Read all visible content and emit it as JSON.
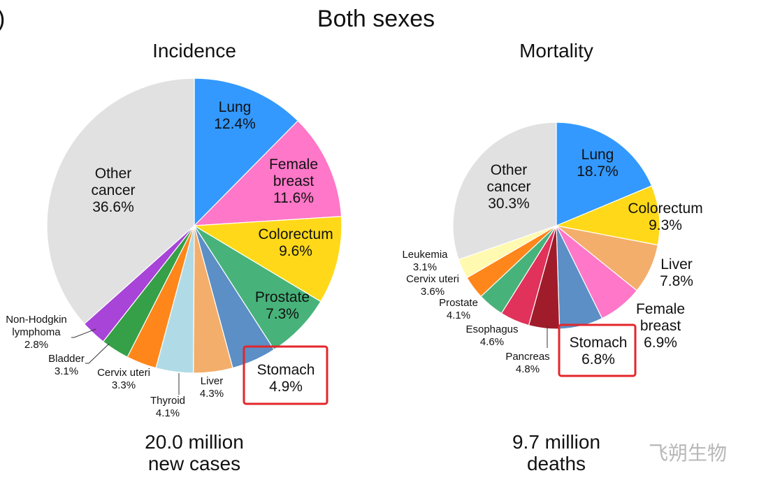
{
  "panel_marker": ")",
  "title": "Both sexes",
  "watermark": "飞朔生物",
  "colors": {
    "highlight_box": "#e3262b",
    "slice_border": "#ffffff"
  },
  "chart_data": [
    {
      "type": "pie",
      "title": "Incidence",
      "total_line1": "20.0 million",
      "total_line2": "new cases",
      "start_angle": "12 o'clock, clockwise",
      "highlight": "Stomach",
      "slices": [
        {
          "name": "Lung",
          "label": [
            "Lung"
          ],
          "pct_text": "12.4%",
          "value": 12.4,
          "color": "#3399ff"
        },
        {
          "name": "Female breast",
          "label": [
            "Female",
            "breast"
          ],
          "pct_text": "11.6%",
          "value": 11.6,
          "color": "#ff77c8"
        },
        {
          "name": "Colorectum",
          "label": [
            "Colorectum"
          ],
          "pct_text": "9.6%",
          "value": 9.6,
          "color": "#ffd919"
        },
        {
          "name": "Prostate",
          "label": [
            "Prostate"
          ],
          "pct_text": "7.3%",
          "value": 7.3,
          "color": "#47b37a"
        },
        {
          "name": "Stomach",
          "label": [
            "Stomach"
          ],
          "pct_text": "4.9%",
          "value": 4.9,
          "color": "#5b8fc5"
        },
        {
          "name": "Liver",
          "label": [
            "Liver"
          ],
          "pct_text": "4.3%",
          "value": 4.3,
          "color": "#f3ae6b"
        },
        {
          "name": "Thyroid",
          "label": [
            "Thyroid"
          ],
          "pct_text": "4.1%",
          "value": 4.1,
          "color": "#b0dbe6"
        },
        {
          "name": "Cervix uteri",
          "label": [
            "Cervix uteri"
          ],
          "pct_text": "3.3%",
          "value": 3.3,
          "color": "#ff861a"
        },
        {
          "name": "Bladder",
          "label": [
            "Bladder"
          ],
          "pct_text": "3.1%",
          "value": 3.1,
          "color": "#35a047"
        },
        {
          "name": "Non-Hodgkin lymphoma",
          "label": [
            "Non-Hodgkin",
            "lymphoma"
          ],
          "pct_text": "2.8%",
          "value": 2.8,
          "color": "#a844d8"
        },
        {
          "name": "Other cancer",
          "label": [
            "Other",
            "cancer"
          ],
          "pct_text": "36.6%",
          "value": 36.6,
          "color": "#e1e1e1"
        }
      ]
    },
    {
      "type": "pie",
      "title": "Mortality",
      "total_line1": "9.7 million",
      "total_line2": "deaths",
      "start_angle": "12 o'clock, clockwise",
      "highlight": "Stomach",
      "slices": [
        {
          "name": "Lung",
          "label": [
            "Lung"
          ],
          "pct_text": "18.7%",
          "value": 18.7,
          "color": "#3399ff"
        },
        {
          "name": "Colorectum",
          "label": [
            "Colorectum"
          ],
          "pct_text": "9.3%",
          "value": 9.3,
          "color": "#ffd919"
        },
        {
          "name": "Liver",
          "label": [
            "Liver"
          ],
          "pct_text": "7.8%",
          "value": 7.8,
          "color": "#f3ae6b"
        },
        {
          "name": "Female breast",
          "label": [
            "Female",
            "breast"
          ],
          "pct_text": "6.9%",
          "value": 6.9,
          "color": "#ff77c8"
        },
        {
          "name": "Stomach",
          "label": [
            "Stomach"
          ],
          "pct_text": "6.8%",
          "value": 6.8,
          "color": "#5b8fc5"
        },
        {
          "name": "Pancreas",
          "label": [
            "Pancreas"
          ],
          "pct_text": "4.8%",
          "value": 4.8,
          "color": "#a01c2a"
        },
        {
          "name": "Esophagus",
          "label": [
            "Esophagus"
          ],
          "pct_text": "4.6%",
          "value": 4.6,
          "color": "#e0325a"
        },
        {
          "name": "Prostate",
          "label": [
            "Prostate"
          ],
          "pct_text": "4.1%",
          "value": 4.1,
          "color": "#47b37a"
        },
        {
          "name": "Cervix uteri",
          "label": [
            "Cervix uteri"
          ],
          "pct_text": "3.6%",
          "value": 3.6,
          "color": "#ff861a"
        },
        {
          "name": "Leukemia",
          "label": [
            "Leukemia"
          ],
          "pct_text": "3.1%",
          "value": 3.1,
          "color": "#fffab0"
        },
        {
          "name": "Other cancer",
          "label": [
            "Other",
            "cancer"
          ],
          "pct_text": "30.3%",
          "value": 30.3,
          "color": "#e1e1e1"
        }
      ]
    }
  ]
}
